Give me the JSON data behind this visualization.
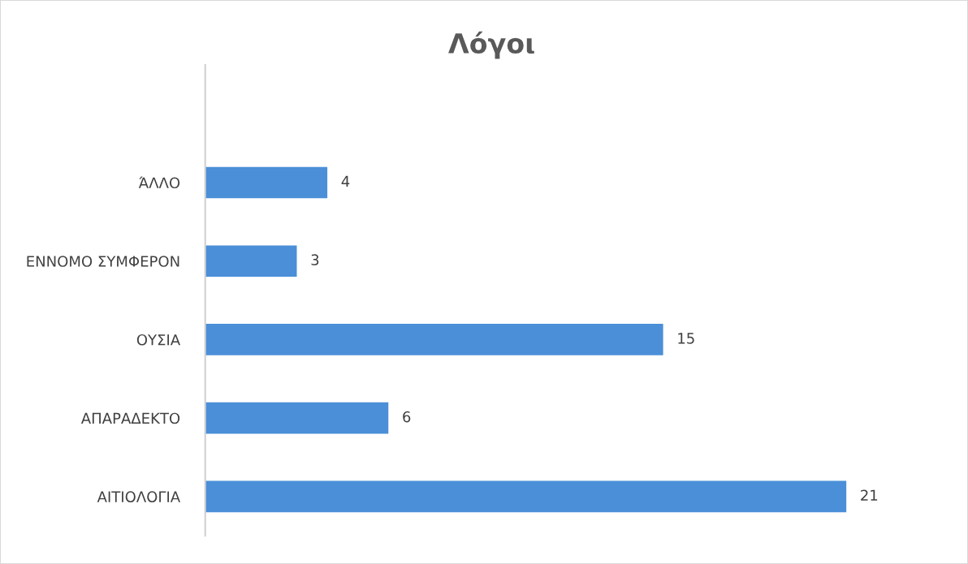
{
  "chart_data": {
    "type": "bar",
    "orientation": "horizontal",
    "title": "Λόγοι",
    "categories": [
      null,
      "ΆΛΛΟ",
      "ΕΝΝΟΜΟ ΣΥΜΦΕΡΟΝ",
      "ΟΥΣΙΑ",
      "ΑΠΑΡΑΔΕΚΤΟ",
      "ΑΙΤΙΟΛΟΓΙΑ"
    ],
    "values": [
      null,
      4,
      3,
      15,
      6,
      21
    ],
    "color": "#4a8fd8",
    "data_labels": true,
    "grid": false,
    "legend": false
  }
}
